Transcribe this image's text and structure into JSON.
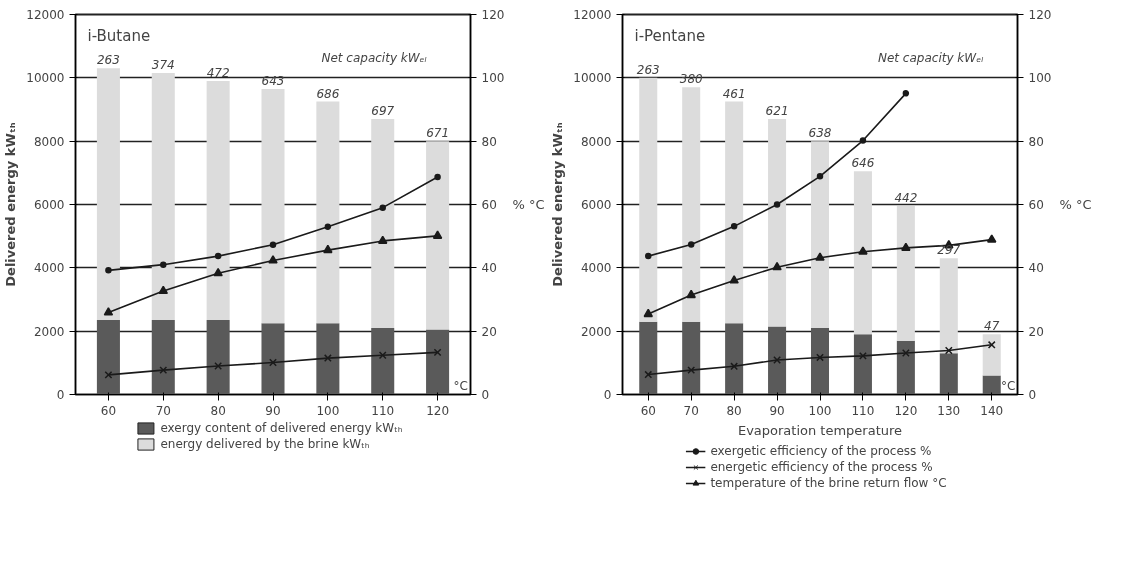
{
  "chart_data": [
    {
      "type": "bar",
      "stacked": true,
      "title": "i-Butane",
      "subtitle": "Net capacity kWₑₗ",
      "ylabel": "Delivered energy kWₜₕ",
      "y2label": "% °C",
      "categories": [
        "60",
        "70",
        "80",
        "90",
        "100",
        "110",
        "120"
      ],
      "ylim": [
        0,
        12000
      ],
      "yticks": [
        0,
        2000,
        4000,
        6000,
        8000,
        10000,
        12000
      ],
      "y2lim": [
        0,
        120
      ],
      "y2ticks": [
        0,
        20,
        40,
        60,
        80,
        100,
        120
      ],
      "grid": "y",
      "legend": "bottom",
      "series": [
        {
          "name": "exergy content of delivered energy kWₜₕ",
          "color": "#5a5a5a",
          "values": [
            2350,
            2350,
            2350,
            2250,
            2250,
            2100,
            2050
          ]
        },
        {
          "name": "energy delivered by the brine kWₜₕ",
          "color": "#dcdcdc",
          "values": [
            7950,
            7800,
            7550,
            7400,
            7000,
            6600,
            5950
          ]
        },
        {
          "type": "line",
          "axis": "y2",
          "marker": "circle",
          "color": "#1a1a1a",
          "values": [
            39.2,
            41,
            43.7,
            47.3,
            53,
            59,
            68.7
          ]
        },
        {
          "type": "line",
          "axis": "y2",
          "marker": "cross",
          "color": "#1a1a1a",
          "values": [
            6.2,
            7.7,
            9,
            10.1,
            11.5,
            12.4,
            13.3
          ]
        },
        {
          "type": "line",
          "axis": "y2",
          "marker": "triangle",
          "color": "#1a1a1a",
          "values": [
            25.9,
            32.7,
            38.3,
            42.3,
            45.6,
            48.5,
            50.1
          ]
        }
      ],
      "annotations": [
        "°C",
        "263",
        "374",
        "472",
        "643",
        "686",
        "697",
        "671"
      ]
    },
    {
      "type": "bar",
      "stacked": true,
      "title": "i-Pentane",
      "subtitle": "Net capacity kWₑₗ",
      "ylabel": "Delivered energy kWₜₕ",
      "y2label": "% °C",
      "xlabel": "Evaporation temperature",
      "categories": [
        "60",
        "70",
        "80",
        "90",
        "100",
        "110",
        "120",
        "130",
        "140"
      ],
      "ylim": [
        0,
        12000
      ],
      "yticks": [
        0,
        2000,
        4000,
        6000,
        8000,
        10000,
        12000
      ],
      "y2lim": [
        0,
        120
      ],
      "y2ticks": [
        0,
        20,
        40,
        60,
        80,
        100,
        120
      ],
      "grid": "y",
      "legend": "bottom",
      "series": [
        {
          "color": "#5a5a5a",
          "values": [
            2300,
            2300,
            2250,
            2150,
            2100,
            1900,
            1700,
            1300,
            600
          ]
        },
        {
          "color": "#dcdcdc",
          "values": [
            7700,
            7400,
            7000,
            6550,
            5900,
            5150,
            4250,
            3000,
            1300
          ]
        },
        {
          "name": "exergetic efficiency of the process %",
          "type": "line",
          "axis": "y2",
          "marker": "circle",
          "color": "#1a1a1a",
          "values": [
            43.7,
            47.4,
            53.1,
            60,
            68.9,
            80.2,
            95.1,
            null,
            null
          ]
        },
        {
          "name": "energetic efficiency of the process %",
          "type": "line",
          "axis": "y2",
          "marker": "cross",
          "color": "#1a1a1a",
          "values": [
            6.3,
            7.7,
            8.9,
            10.9,
            11.7,
            12.2,
            13.1,
            13.9,
            15.7
          ]
        },
        {
          "name": "temperature of the brine return flow °C",
          "type": "line",
          "axis": "y2",
          "marker": "triangle",
          "color": "#1a1a1a",
          "values": [
            25.4,
            31.4,
            36,
            40.2,
            43.2,
            45.1,
            46.3,
            47.1,
            48.9
          ]
        }
      ],
      "annotations": [
        "°C",
        "263",
        "380",
        "461",
        "621",
        "638",
        "646",
        "442",
        "297",
        "47"
      ]
    }
  ]
}
